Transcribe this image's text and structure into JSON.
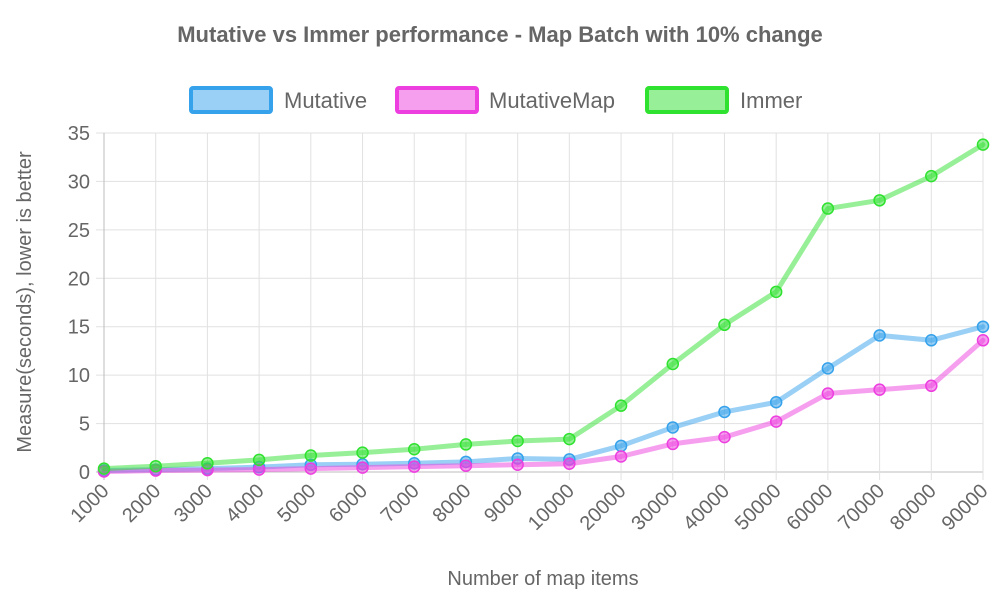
{
  "chart_data": {
    "type": "line",
    "title": "Mutative vs Immer performance - Map Batch with 10% change",
    "xlabel": "Number of map items",
    "ylabel": "Measure(seconds), lower is better",
    "categories": [
      "1000",
      "2000",
      "3000",
      "4000",
      "5000",
      "6000",
      "7000",
      "8000",
      "9000",
      "10000",
      "20000",
      "30000",
      "40000",
      "50000",
      "60000",
      "70000",
      "80000",
      "90000"
    ],
    "ylim": [
      0,
      35
    ],
    "yticks": [
      0,
      5,
      10,
      15,
      20,
      25,
      30,
      35
    ],
    "grid": true,
    "legend_position": "top",
    "series": [
      {
        "name": "Mutative",
        "color": "#36a2eb",
        "values": [
          0.15,
          0.25,
          0.35,
          0.5,
          0.75,
          0.8,
          0.9,
          1.05,
          1.4,
          1.3,
          2.7,
          4.6,
          6.2,
          7.2,
          10.7,
          14.1,
          13.6,
          15.0
        ]
      },
      {
        "name": "MutativeMap",
        "color": "#ed3fe0",
        "values": [
          0.05,
          0.15,
          0.2,
          0.25,
          0.35,
          0.45,
          0.55,
          0.65,
          0.75,
          0.85,
          1.6,
          2.9,
          3.6,
          5.2,
          8.1,
          8.5,
          8.9,
          13.6
        ]
      },
      {
        "name": "Immer",
        "color": "#2fe22f",
        "values": [
          0.35,
          0.6,
          0.9,
          1.25,
          1.7,
          2.0,
          2.35,
          2.85,
          3.2,
          3.4,
          6.85,
          11.15,
          15.2,
          18.6,
          27.2,
          28.05,
          30.55,
          33.8
        ]
      }
    ]
  }
}
